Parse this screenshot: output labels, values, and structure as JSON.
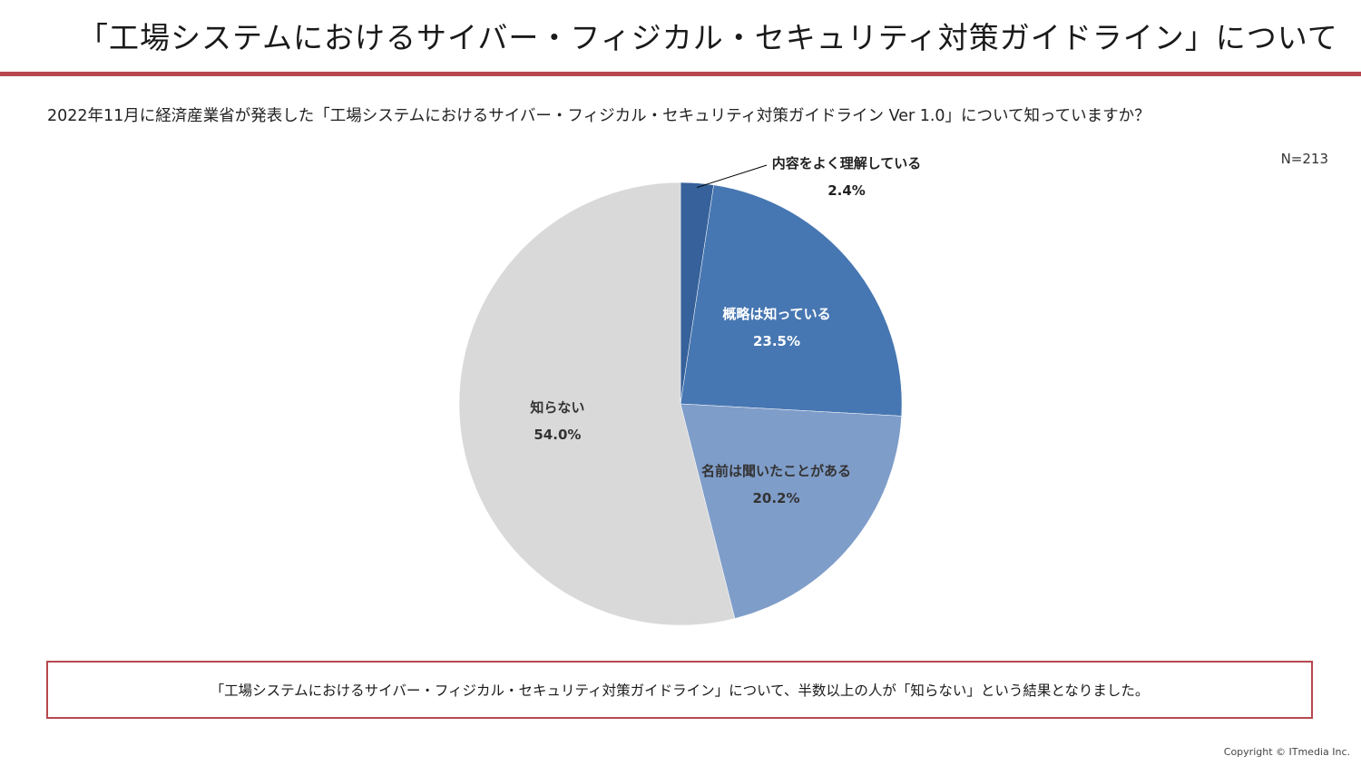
{
  "header": {
    "title": "「工場システムにおけるサイバー・フィジカル・セキュリティ対策ガイドライン」について"
  },
  "question": "2022年11月に経済産業省が発表した「工場システムにおけるサイバー・フィジカル・セキュリティ対策ガイドライン Ver 1.0」について知っていますか？",
  "sample_size": "N=213",
  "chart_data": {
    "type": "pie",
    "start_angle_deg": 0,
    "direction": "clockwise",
    "slices": [
      {
        "label": "内容をよく理解している",
        "value": 2.4,
        "value_label": "2.4%",
        "color": "#36619a",
        "label_color": "#222222"
      },
      {
        "label": "概略は知っている",
        "value": 23.5,
        "value_label": "23.5%",
        "color": "#4777b2",
        "label_color": "#ffffff"
      },
      {
        "label": "名前は聞いたことがある",
        "value": 20.2,
        "value_label": "20.2%",
        "color": "#7f9dc9",
        "label_color": "#333333"
      },
      {
        "label": "知らない",
        "value": 54.0,
        "value_label": "54.0%",
        "color": "#d9d9d9",
        "label_color": "#333333"
      }
    ]
  },
  "summary": "「工場システムにおけるサイバー・フィジカル・セキュリティ対策ガイドライン」について、半数以上の人が「知らない」という結果となりました。",
  "footer": {
    "copyright": "Copyright © ITmedia Inc."
  },
  "colors": {
    "accent": "#b8474f"
  }
}
